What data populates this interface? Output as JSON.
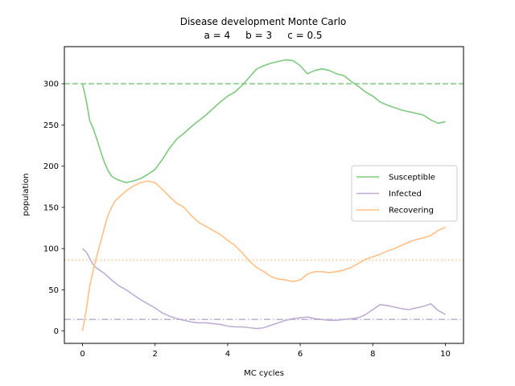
{
  "chart_data": {
    "type": "line",
    "title": "Disease development Monte Carlo",
    "subtitle": "a = 4     b = 3     c = 0.5",
    "xlabel": "MC cycles",
    "ylabel": "population",
    "xlim": [
      -0.5,
      10.5
    ],
    "ylim": [
      -15,
      345
    ],
    "xticks": [
      0,
      2,
      4,
      6,
      8,
      10
    ],
    "yticks": [
      0,
      50,
      100,
      150,
      200,
      250,
      300
    ],
    "grid": false,
    "legend_position": "center-right",
    "series": [
      {
        "name": "Susceptible",
        "color": "#7fc97f",
        "x": [
          0,
          0.1,
          0.2,
          0.3,
          0.4,
          0.5,
          0.6,
          0.7,
          0.8,
          0.9,
          1.0,
          1.2,
          1.4,
          1.6,
          1.8,
          2.0,
          2.2,
          2.4,
          2.6,
          2.8,
          3.0,
          3.2,
          3.4,
          3.6,
          3.8,
          4.0,
          4.2,
          4.4,
          4.6,
          4.8,
          5.0,
          5.2,
          5.4,
          5.6,
          5.8,
          6.0,
          6.2,
          6.4,
          6.6,
          6.8,
          7.0,
          7.2,
          7.4,
          7.6,
          7.8,
          8.0,
          8.2,
          8.4,
          8.6,
          8.8,
          9.0,
          9.2,
          9.4,
          9.6,
          9.8,
          10.0
        ],
        "y": [
          300,
          280,
          255,
          245,
          232,
          218,
          205,
          195,
          188,
          185,
          183,
          180,
          182,
          185,
          190,
          196,
          208,
          222,
          233,
          240,
          248,
          255,
          262,
          270,
          278,
          285,
          290,
          298,
          308,
          318,
          322,
          325,
          327,
          329,
          328,
          322,
          312,
          316,
          318,
          316,
          312,
          310,
          303,
          297,
          290,
          285,
          278,
          274,
          271,
          268,
          266,
          264,
          262,
          256,
          252,
          254
        ]
      },
      {
        "name": "Infected",
        "color": "#beaed4",
        "x": [
          0,
          0.1,
          0.2,
          0.3,
          0.4,
          0.5,
          0.6,
          0.7,
          0.8,
          1.0,
          1.2,
          1.4,
          1.6,
          1.8,
          2.0,
          2.2,
          2.4,
          2.6,
          2.8,
          3.0,
          3.2,
          3.4,
          3.6,
          3.8,
          4.0,
          4.2,
          4.4,
          4.6,
          4.8,
          5.0,
          5.2,
          5.4,
          5.6,
          5.8,
          6.0,
          6.2,
          6.4,
          6.6,
          6.8,
          7.0,
          7.2,
          7.4,
          7.6,
          7.8,
          8.0,
          8.2,
          8.4,
          8.6,
          8.8,
          9.0,
          9.2,
          9.4,
          9.6,
          9.8,
          10.0
        ],
        "y": [
          100,
          96,
          88,
          80,
          76,
          73,
          70,
          66,
          62,
          55,
          50,
          44,
          38,
          33,
          28,
          22,
          18,
          15,
          13,
          11,
          10,
          10,
          9,
          8,
          6,
          5,
          5,
          4,
          3,
          4,
          7,
          10,
          13,
          15,
          16,
          17,
          15,
          14,
          13,
          13,
          14,
          15,
          16,
          20,
          26,
          32,
          31,
          29,
          27,
          26,
          28,
          30,
          33,
          25,
          20
        ]
      },
      {
        "name": "Recovering",
        "color": "#fdc086",
        "x": [
          0,
          0.1,
          0.2,
          0.3,
          0.4,
          0.5,
          0.6,
          0.7,
          0.8,
          0.9,
          1.0,
          1.2,
          1.4,
          1.6,
          1.8,
          2.0,
          2.2,
          2.4,
          2.6,
          2.8,
          3.0,
          3.2,
          3.4,
          3.6,
          3.8,
          4.0,
          4.2,
          4.4,
          4.6,
          4.8,
          5.0,
          5.2,
          5.4,
          5.6,
          5.8,
          6.0,
          6.2,
          6.4,
          6.6,
          6.8,
          7.0,
          7.2,
          7.4,
          7.6,
          7.8,
          8.0,
          8.2,
          8.4,
          8.6,
          8.8,
          9.0,
          9.2,
          9.4,
          9.6,
          9.8,
          10.0
        ],
        "y": [
          0,
          25,
          55,
          75,
          92,
          108,
          125,
          140,
          150,
          158,
          162,
          170,
          176,
          180,
          182,
          180,
          172,
          163,
          155,
          150,
          140,
          132,
          127,
          122,
          117,
          110,
          104,
          95,
          85,
          77,
          72,
          66,
          63,
          62,
          60,
          62,
          69,
          72,
          72,
          71,
          72,
          74,
          77,
          82,
          87,
          90,
          93,
          97,
          100,
          104,
          108,
          111,
          113,
          116,
          122,
          126
        ]
      }
    ],
    "reference_lines": [
      {
        "y": 300,
        "color": "#7fc97f",
        "style": "dashed"
      },
      {
        "y": 14,
        "color": "#beaed4",
        "style": "dashdot"
      },
      {
        "y": 86,
        "color": "#fdc086",
        "style": "dotted"
      }
    ]
  }
}
